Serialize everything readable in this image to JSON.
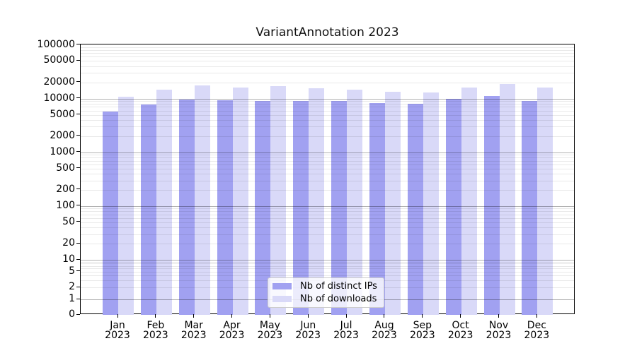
{
  "chart_data": {
    "type": "bar",
    "title": "VariantAnnotation 2023",
    "categories": [
      "Jan 2023",
      "Feb 2023",
      "Mar 2023",
      "Apr 2023",
      "May 2023",
      "Jun 2023",
      "Jul 2023",
      "Aug 2023",
      "Sep 2023",
      "Oct 2023",
      "Nov 2023",
      "Dec 2023"
    ],
    "x_months": [
      "Jan",
      "Feb",
      "Mar",
      "Apr",
      "May",
      "Jun",
      "Jul",
      "Aug",
      "Sep",
      "Oct",
      "Nov",
      "Dec"
    ],
    "x_year": "2023",
    "series": [
      {
        "name": "Nb of distinct IPs",
        "color": "#a1a1f1",
        "values": [
          5700,
          7700,
          9500,
          9300,
          9000,
          8900,
          8900,
          8200,
          7900,
          9800,
          11100,
          9000
        ]
      },
      {
        "name": "Nb of downloads",
        "color": "#d9d9f8",
        "values": [
          10700,
          14700,
          17600,
          16100,
          16800,
          15500,
          14700,
          13200,
          12900,
          16100,
          18900,
          16100
        ]
      }
    ],
    "xlabel": "",
    "ylabel": "",
    "yscale": "symlog",
    "ylim": [
      0,
      100000
    ],
    "y_ticks": [
      0,
      1,
      2,
      5,
      10,
      20,
      50,
      100,
      200,
      500,
      1000,
      2000,
      5000,
      10000,
      20000,
      50000,
      100000
    ],
    "y_tick_labels": [
      "0",
      "1",
      "2",
      "5",
      "10",
      "20",
      "50",
      "100",
      "200",
      "500",
      "1000",
      "2000",
      "5000",
      "10000",
      "20000",
      "50000",
      "100000"
    ],
    "grid": "major and minor log gridlines, horizontal only",
    "legend_position": "inside lower center"
  },
  "colors": {
    "bar_distinct_ips": "#a1a1f1",
    "bar_downloads": "#d9d9f8",
    "grid_major": "rgba(0,0,0,0.30)",
    "grid_minor": "rgba(0,0,0,0.085)",
    "spine": "#000000",
    "legend_border": "#cccccc",
    "background": "#ffffff"
  }
}
